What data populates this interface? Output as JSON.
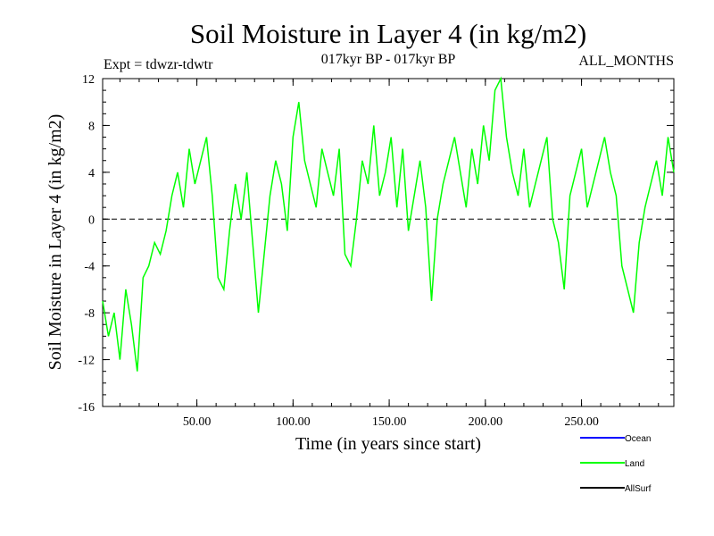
{
  "chart_data": {
    "type": "line",
    "title": "Soil Moisture in Layer 4 (in kg/m2)",
    "subtitle_left": "Expt = tdwzr-tdwtr",
    "subtitle_center": "017kyr BP - 017kyr BP",
    "subtitle_right": "ALL_MONTHS",
    "xlabel": "Time (in years since start)",
    "ylabel": "Soil Moisture in Layer 4 (in kg/m2)",
    "xlim": [
      1,
      298
    ],
    "ylim": [
      -16,
      12
    ],
    "xticks": [
      50,
      100,
      150,
      200,
      250
    ],
    "xtick_labels": [
      "50.00",
      "100.00",
      "150.00",
      "200.00",
      "250.00"
    ],
    "yticks": [
      -16,
      -12,
      -8,
      -4,
      0,
      4,
      8,
      12
    ],
    "ytick_labels": [
      "-16",
      "-12",
      "-8",
      "-4",
      "0",
      "4",
      "8",
      "12"
    ],
    "zero_line": true,
    "grid": false,
    "legend_position": "bottom-right",
    "series": [
      {
        "name": "Land",
        "color": "#00ff00",
        "x": [
          1,
          4,
          7,
          10,
          13,
          16,
          19,
          22,
          25,
          28,
          31,
          34,
          37,
          40,
          43,
          46,
          49,
          52,
          55,
          58,
          61,
          64,
          67,
          70,
          73,
          76,
          79,
          82,
          85,
          88,
          91,
          94,
          97,
          100,
          103,
          106,
          109,
          112,
          115,
          118,
          121,
          124,
          127,
          130,
          133,
          136,
          139,
          142,
          145,
          148,
          151,
          154,
          157,
          160,
          163,
          166,
          169,
          172,
          175,
          178,
          181,
          184,
          187,
          190,
          193,
          196,
          199,
          202,
          205,
          208,
          211,
          214,
          217,
          220,
          223,
          226,
          229,
          232,
          235,
          238,
          241,
          244,
          247,
          250,
          253,
          256,
          259,
          262,
          265,
          268,
          271,
          274,
          277,
          280,
          283,
          286,
          289,
          292,
          295,
          298
        ],
        "values": [
          -7,
          -10,
          -8,
          -12,
          -6,
          -9,
          -13,
          -5,
          -4,
          -2,
          -3,
          -1,
          2,
          4,
          1,
          6,
          3,
          5,
          7,
          2,
          -5,
          -6,
          -1,
          3,
          0,
          4,
          -2,
          -8,
          -3,
          2,
          5,
          3,
          -1,
          7,
          10,
          5,
          3,
          1,
          6,
          4,
          2,
          6,
          -3,
          -4,
          0,
          5,
          3,
          8,
          2,
          4,
          7,
          1,
          6,
          -1,
          2,
          5,
          1,
          -7,
          0,
          3,
          5,
          7,
          4,
          1,
          6,
          3,
          8,
          5,
          11,
          12,
          7,
          4,
          2,
          6,
          1,
          3,
          5,
          7,
          0,
          -2,
          -6,
          2,
          4,
          6,
          1,
          3,
          5,
          7,
          4,
          2,
          -4,
          -6,
          -8,
          -2,
          1,
          3,
          5,
          2,
          7,
          4
        ]
      }
    ],
    "legend": [
      {
        "name": "Ocean",
        "color": "#0000ff"
      },
      {
        "name": "Land",
        "color": "#00ff00"
      },
      {
        "name": "AllSurf",
        "color": "#000000"
      }
    ]
  }
}
